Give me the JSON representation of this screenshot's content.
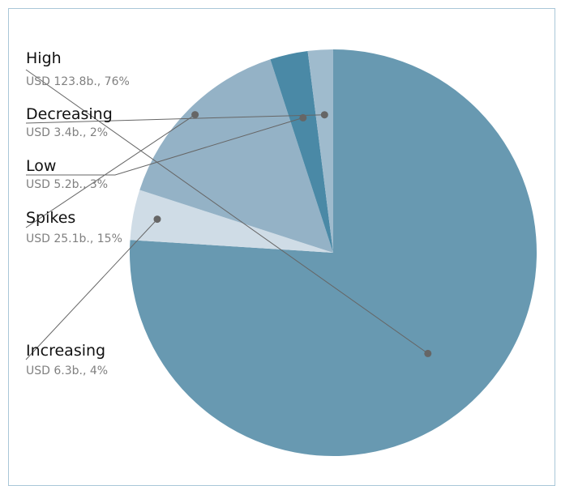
{
  "chart_data": {
    "type": "pie",
    "title": "",
    "legend": "none",
    "start_angle_deg": 90,
    "direction": "clockwise",
    "slices": [
      {
        "name": "High",
        "value": 123.8,
        "percent": 76,
        "value_label": "USD 123.8b., 76%",
        "color": "#6899b1"
      },
      {
        "name": "Increasing",
        "value": 6.3,
        "percent": 4,
        "value_label": "USD 6.3b., 4%",
        "color": "#cfdce6"
      },
      {
        "name": "Spikes",
        "value": 25.1,
        "percent": 15,
        "value_label": "USD 25.1b., 15%",
        "color": "#94b2c6"
      },
      {
        "name": "Low",
        "value": 5.2,
        "percent": 3,
        "value_label": "USD 5.2b., 3%",
        "color": "#4a89a6"
      },
      {
        "name": "Decreasing",
        "value": 3.4,
        "percent": 2,
        "value_label": "USD 3.4b., 2%",
        "color": "#9fbbcd"
      }
    ]
  }
}
